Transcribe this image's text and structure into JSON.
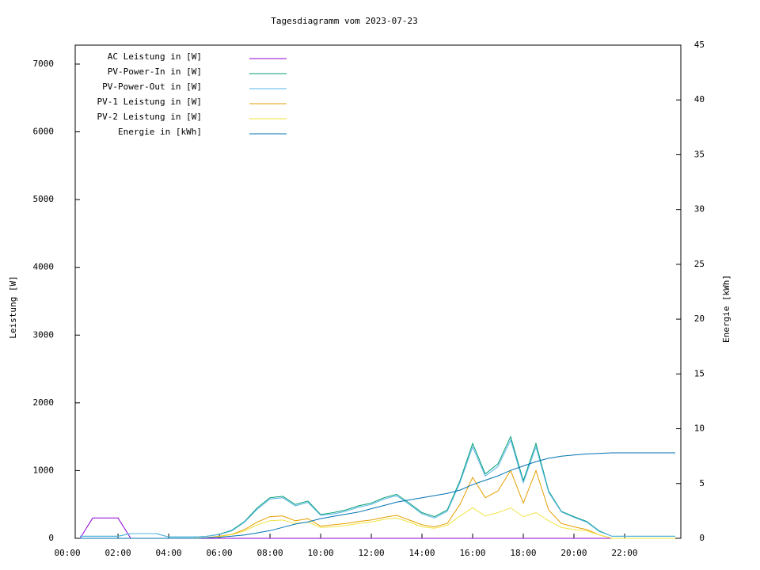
{
  "chart_data": {
    "type": "line",
    "title": "Tagesdiagramm vom 2023-07-23",
    "ylabel": "Leistung [W]",
    "y2label": "Energie [kWh]",
    "x": [
      0.5,
      1,
      1.5,
      2,
      2.5,
      3,
      3.5,
      4,
      4.5,
      5,
      5.5,
      6,
      6.5,
      7,
      7.5,
      8,
      8.5,
      9,
      9.5,
      10,
      10.5,
      11,
      11.5,
      12,
      12.5,
      13,
      13.5,
      14,
      14.5,
      15,
      15.5,
      16,
      16.5,
      17,
      17.5,
      18,
      18.5,
      19,
      19.5,
      20,
      20.5,
      21,
      21.5,
      22,
      22.5,
      23,
      23.5,
      24
    ],
    "xlim": [
      0.31,
      24.22
    ],
    "xticks": [
      {
        "value": 0,
        "label": "00:00"
      },
      {
        "value": 2,
        "label": "02:00"
      },
      {
        "value": 4,
        "label": "04:00"
      },
      {
        "value": 6,
        "label": "06:00"
      },
      {
        "value": 8,
        "label": "08:00"
      },
      {
        "value": 10,
        "label": "10:00"
      },
      {
        "value": 12,
        "label": "12:00"
      },
      {
        "value": 14,
        "label": "14:00"
      },
      {
        "value": 16,
        "label": "16:00"
      },
      {
        "value": 18,
        "label": "18:00"
      },
      {
        "value": 20,
        "label": "20:00"
      },
      {
        "value": 22,
        "label": "22:00"
      }
    ],
    "ylim": [
      0,
      7280
    ],
    "yticks": [
      0,
      1000,
      2000,
      3000,
      4000,
      5000,
      6000,
      7000
    ],
    "y2lim": [
      0,
      45
    ],
    "y2ticks": [
      0,
      5,
      10,
      15,
      20,
      25,
      30,
      35,
      40,
      45
    ],
    "legend": "top-left",
    "grid": false,
    "series": [
      {
        "name": "AC Leistung in [W]",
        "color": "#9400d3",
        "values": [
          0,
          300,
          300,
          300,
          0,
          0,
          0,
          0,
          0,
          0,
          0,
          0,
          0,
          0,
          0,
          0,
          0,
          0,
          0,
          0,
          0,
          0,
          0,
          0,
          0,
          0,
          0,
          0,
          0,
          0,
          0,
          0,
          0,
          0,
          0,
          0,
          0,
          0,
          0,
          0,
          0,
          0,
          0,
          0,
          0,
          0,
          0,
          0
        ]
      },
      {
        "name": "PV-Power-In in [W]",
        "color": "#009e73",
        "values": [
          30,
          30,
          30,
          30,
          70,
          70,
          70,
          20,
          20,
          20,
          30,
          60,
          120,
          250,
          450,
          600,
          620,
          500,
          550,
          350,
          380,
          420,
          480,
          520,
          600,
          650,
          520,
          380,
          320,
          420,
          850,
          1400,
          950,
          1100,
          1500,
          850,
          1400,
          700,
          400,
          320,
          250,
          110,
          30,
          30,
          30,
          30,
          30,
          30
        ]
      },
      {
        "name": "PV-Power-Out in [W]",
        "color": "#56b4e9",
        "values": [
          30,
          30,
          30,
          30,
          70,
          70,
          70,
          20,
          20,
          20,
          30,
          55,
          110,
          240,
          430,
          580,
          600,
          480,
          530,
          340,
          360,
          400,
          460,
          500,
          580,
          630,
          500,
          360,
          300,
          400,
          820,
          1350,
          920,
          1060,
          1450,
          820,
          1350,
          680,
          390,
          310,
          240,
          100,
          30,
          30,
          30,
          30,
          30,
          30
        ]
      },
      {
        "name": "PV-1 Leistung in [W]",
        "color": "#e69f00",
        "values": [
          0,
          0,
          0,
          0,
          0,
          0,
          0,
          0,
          0,
          0,
          10,
          30,
          60,
          130,
          240,
          320,
          330,
          260,
          290,
          180,
          200,
          220,
          250,
          270,
          310,
          340,
          270,
          200,
          170,
          220,
          500,
          900,
          600,
          700,
          1000,
          520,
          1000,
          420,
          220,
          170,
          130,
          50,
          0,
          0,
          0,
          0,
          0,
          0
        ]
      },
      {
        "name": "PV-2 Leistung in [W]",
        "color": "#f0e442",
        "values": [
          0,
          0,
          0,
          0,
          0,
          0,
          0,
          0,
          0,
          0,
          10,
          25,
          55,
          110,
          200,
          260,
          270,
          220,
          240,
          160,
          170,
          190,
          220,
          240,
          280,
          300,
          240,
          170,
          150,
          190,
          330,
          450,
          330,
          380,
          450,
          320,
          380,
          260,
          160,
          130,
          110,
          50,
          0,
          0,
          0,
          0,
          0,
          0
        ]
      },
      {
        "name": "Energie in [kWh]",
        "color": "#0072b2",
        "axis": "y2",
        "values": [
          0,
          0,
          0,
          0,
          0,
          0,
          0,
          0,
          0,
          0,
          0.05,
          0.1,
          0.2,
          0.3,
          0.5,
          0.7,
          1.0,
          1.3,
          1.5,
          1.8,
          2.0,
          2.2,
          2.4,
          2.7,
          3.0,
          3.3,
          3.5,
          3.7,
          3.9,
          4.1,
          4.4,
          4.9,
          5.3,
          5.7,
          6.2,
          6.6,
          7.0,
          7.3,
          7.5,
          7.6,
          7.7,
          7.75,
          7.8,
          7.8,
          7.8,
          7.8,
          7.8,
          7.8
        ]
      }
    ]
  }
}
